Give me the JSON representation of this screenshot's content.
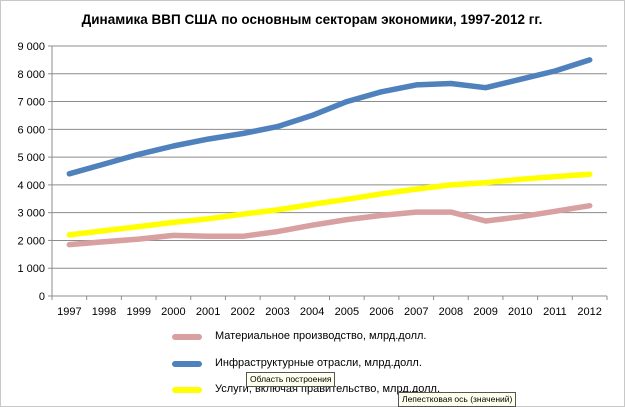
{
  "chart_data": {
    "type": "line",
    "title": "Динамика ВВП США по основным секторам экономики, 1997-2012 гг.",
    "xlabel": "",
    "ylabel": "",
    "categories": [
      "1997",
      "1998",
      "1999",
      "2000",
      "2001",
      "2002",
      "2003",
      "2004",
      "2005",
      "2006",
      "2007",
      "2008",
      "2009",
      "2010",
      "2011",
      "2012"
    ],
    "ylim": [
      0,
      9000
    ],
    "yticks": [
      0,
      1000,
      2000,
      3000,
      4000,
      5000,
      6000,
      7000,
      8000,
      9000
    ],
    "ytick_labels": [
      "0",
      "1 000",
      "2 000",
      "3 000",
      "4 000",
      "5 000",
      "6 000",
      "7 000",
      "8 000",
      "9 000"
    ],
    "grid": true,
    "legend_position": "bottom",
    "series": [
      {
        "name": "Материальное производство, млрд.долл.",
        "color": "#d8a0a0",
        "values": [
          1850,
          1950,
          2050,
          2180,
          2150,
          2150,
          2320,
          2550,
          2750,
          2900,
          3020,
          3020,
          2700,
          2850,
          3050,
          3250
        ]
      },
      {
        "name": "Инфраструктурные отрасли, млрд.долл.",
        "color": "#4f81bd",
        "values": [
          4400,
          4750,
          5100,
          5400,
          5650,
          5850,
          6100,
          6500,
          7000,
          7350,
          7600,
          7650,
          7500,
          7800,
          8100,
          8500
        ]
      },
      {
        "name": "Услуги, включая правительство, млрд.долл.",
        "color": "#ffff00",
        "values": [
          2200,
          2350,
          2500,
          2650,
          2780,
          2950,
          3100,
          3300,
          3480,
          3680,
          3850,
          4000,
          4080,
          4200,
          4300,
          4380
        ]
      }
    ]
  },
  "tooltips": {
    "plot_area": "Область построения",
    "value_axis": "Лепестковая ось (значений)"
  }
}
